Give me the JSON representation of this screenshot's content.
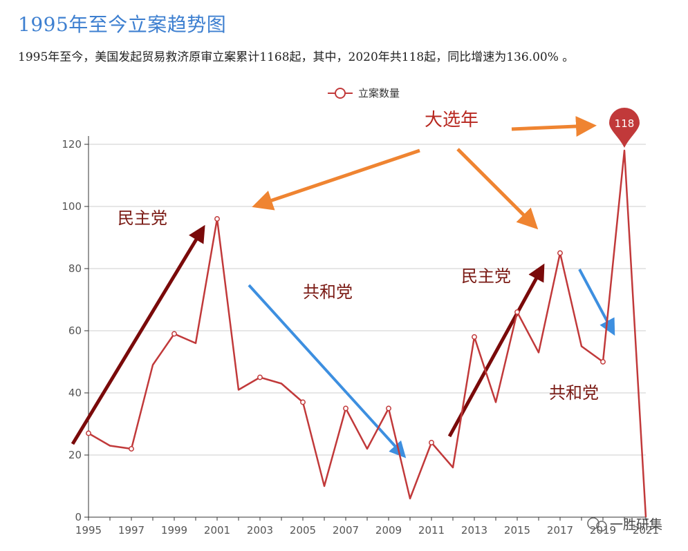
{
  "page": {
    "title": "1995年至今立案趋势图",
    "subtitle": "1995年至今，美国发起贸易救济原审立案累计1168起，其中，2020年共118起，同比增速为136.00% 。"
  },
  "watermark": "一胜研集",
  "colors": {
    "line": "#c1393a",
    "grid": "#cccccc",
    "title": "#3d7fd0",
    "pin": "#c1393a",
    "arrow_orange": "#ef8431",
    "arrow_blue": "#3d8fe0",
    "arrow_darkred": "#7a0a0a"
  },
  "chart_data": {
    "type": "line",
    "legend": [
      "立案数量"
    ],
    "x": [
      1995,
      1996,
      1997,
      1998,
      1999,
      2000,
      2001,
      2002,
      2003,
      2004,
      2005,
      2006,
      2007,
      2008,
      2009,
      2010,
      2011,
      2012,
      2013,
      2014,
      2015,
      2016,
      2017,
      2018,
      2019,
      2020,
      2021
    ],
    "series": [
      {
        "name": "立案数量",
        "values": [
          27,
          23,
          22,
          49,
          59,
          56,
          96,
          41,
          45,
          43,
          37,
          10,
          35,
          22,
          35,
          6,
          24,
          16,
          58,
          37,
          66,
          53,
          85,
          55,
          50,
          118,
          0
        ]
      }
    ],
    "x_tick_labels": [
      "1995",
      "1997",
      "1999",
      "2001",
      "2003",
      "2005",
      "2007",
      "2009",
      "2011",
      "2013",
      "2015",
      "2017",
      "2019",
      "2021"
    ],
    "y_ticks": [
      0,
      20,
      40,
      60,
      80,
      100,
      120
    ],
    "ylim": [
      0,
      120
    ],
    "marker_points": [
      1995,
      1997,
      1999,
      2001,
      2003,
      2005,
      2007,
      2009,
      2011,
      2013,
      2015,
      2017,
      2019
    ],
    "max_pin": {
      "year": 2020,
      "value": 118,
      "label": "118"
    },
    "annotations": {
      "election_year": "大选年",
      "democratic_1": "民主党",
      "republican_1": "共和党",
      "democratic_2": "民主党",
      "republican_2": "共和党"
    }
  }
}
